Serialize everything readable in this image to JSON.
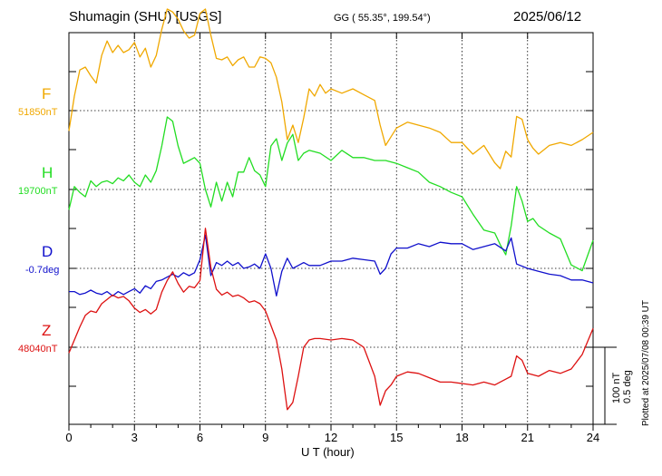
{
  "header": {
    "title": "Shumagin (SHU)  [USGS]",
    "coords": "GG ( 55.35°, 199.54°)",
    "date": "2025/06/12"
  },
  "plotted_note": "Plotted at 2025/07/08 00:39 UT",
  "scale": {
    "nt": "100 nT",
    "deg": "0.5 deg"
  },
  "chart_data": {
    "type": "line",
    "xlabel": "U T (hour)",
    "xlim": [
      0,
      24
    ],
    "xticks": [
      "0",
      "3",
      "6",
      "9",
      "12",
      "15",
      "18",
      "21",
      "24"
    ],
    "grid": true,
    "series": [
      {
        "name": "F",
        "baseline_label": "51850nT",
        "color": "#f0a800",
        "x": [
          0,
          0.25,
          0.5,
          0.75,
          1,
          1.25,
          1.5,
          1.75,
          2,
          2.25,
          2.5,
          2.75,
          3,
          3.25,
          3.5,
          3.75,
          4,
          4.25,
          4.5,
          4.75,
          5,
          5.25,
          5.5,
          5.75,
          6,
          6.25,
          6.5,
          6.75,
          7,
          7.25,
          7.5,
          7.75,
          8,
          8.25,
          8.5,
          8.75,
          9,
          9.25,
          9.5,
          9.75,
          10,
          10.25,
          10.5,
          10.75,
          11,
          11.25,
          11.5,
          11.75,
          12,
          12.5,
          13,
          13.5,
          14,
          14.25,
          14.5,
          14.75,
          15,
          15.5,
          16,
          16.5,
          17,
          17.5,
          18,
          18.5,
          19,
          19.5,
          19.75,
          20,
          20.25,
          20.5,
          20.75,
          21,
          21.25,
          21.5,
          22,
          22.5,
          23,
          23.5,
          24
        ],
        "y": [
          -14,
          10,
          28,
          30,
          24,
          19,
          38,
          48,
          40,
          45,
          40,
          42,
          47,
          37,
          43,
          30,
          38,
          56,
          70,
          68,
          63,
          55,
          50,
          52,
          67,
          70,
          52,
          36,
          35,
          37,
          31,
          35,
          37,
          30,
          30,
          37,
          36,
          33,
          23,
          6,
          -20,
          -10,
          -22,
          -5,
          15,
          10,
          18,
          12,
          15,
          12,
          15,
          11,
          7,
          -10,
          -24,
          -18,
          -12,
          -8,
          -10,
          -12,
          -15,
          -22,
          -22,
          -30,
          -24,
          -36,
          -40,
          -28,
          -32,
          -4,
          -6,
          -20,
          -26,
          -30,
          -24,
          -22,
          -24,
          -20,
          -15
        ],
        "scale": 1.0,
        "offset": 0
      },
      {
        "name": "H",
        "baseline_label": "19700nT",
        "color": "#22dd22",
        "x": [
          0,
          0.25,
          0.5,
          0.75,
          1,
          1.25,
          1.5,
          1.75,
          2,
          2.25,
          2.5,
          2.75,
          3,
          3.25,
          3.5,
          3.75,
          4,
          4.25,
          4.5,
          4.75,
          5,
          5.25,
          5.5,
          5.75,
          6,
          6.25,
          6.5,
          6.75,
          7,
          7.25,
          7.5,
          7.75,
          8,
          8.25,
          8.5,
          8.75,
          9,
          9.25,
          9.5,
          9.75,
          10,
          10.25,
          10.5,
          10.75,
          11,
          11.5,
          12,
          12.5,
          13,
          13.5,
          14,
          14.5,
          15,
          15.5,
          16,
          16.5,
          17,
          17.5,
          18,
          18.5,
          19,
          19.5,
          19.75,
          20,
          20.25,
          20.5,
          20.75,
          21,
          21.25,
          21.5,
          22,
          22.5,
          23,
          23.5,
          24
        ],
        "y": [
          -14,
          2,
          -2,
          -5,
          6,
          2,
          5,
          6,
          4,
          8,
          6,
          10,
          5,
          2,
          10,
          5,
          13,
          30,
          50,
          47,
          30,
          18,
          20,
          22,
          18,
          0,
          -12,
          5,
          -8,
          5,
          -5,
          12,
          12,
          22,
          13,
          10,
          2,
          30,
          35,
          20,
          32,
          38,
          20,
          25,
          27,
          25,
          20,
          27,
          22,
          22,
          20,
          20,
          18,
          15,
          12,
          5,
          2,
          -2,
          -5,
          -17,
          -28,
          -30,
          -38,
          -45,
          -25,
          2,
          -8,
          -22,
          -20,
          -25,
          -30,
          -34,
          -52,
          -56,
          -35
        ],
        "scale": 1.0,
        "offset": 0
      },
      {
        "name": "D",
        "baseline_label": "-0.7deg",
        "color": "#1010cc",
        "x": [
          0,
          0.25,
          0.5,
          0.75,
          1,
          1.25,
          1.5,
          1.75,
          2,
          2.25,
          2.5,
          2.75,
          3,
          3.25,
          3.5,
          3.75,
          4,
          4.25,
          4.5,
          4.75,
          5,
          5.25,
          5.5,
          5.75,
          6,
          6.25,
          6.5,
          6.75,
          7,
          7.25,
          7.5,
          7.75,
          8,
          8.25,
          8.5,
          8.75,
          9,
          9.25,
          9.5,
          9.75,
          10,
          10.25,
          10.5,
          10.75,
          11,
          11.5,
          12,
          12.5,
          13,
          13.5,
          14,
          14.25,
          14.5,
          14.75,
          15,
          15.5,
          16,
          16.5,
          17,
          17.5,
          18,
          18.5,
          19,
          19.5,
          20,
          20.25,
          20.5,
          21,
          21.5,
          22,
          22.5,
          23,
          23.5,
          24
        ],
        "y": [
          -0.16,
          -0.16,
          -0.18,
          -0.17,
          -0.15,
          -0.17,
          -0.18,
          -0.16,
          -0.19,
          -0.16,
          -0.18,
          -0.16,
          -0.14,
          -0.17,
          -0.12,
          -0.14,
          -0.09,
          -0.08,
          -0.06,
          -0.04,
          -0.06,
          -0.03,
          -0.05,
          -0.03,
          0.06,
          0.23,
          -0.05,
          0.04,
          0.02,
          0.05,
          0.02,
          0.04,
          0.0,
          0.01,
          0.03,
          0.0,
          0.1,
          0.0,
          -0.19,
          -0.02,
          0.07,
          0.0,
          0.02,
          0.04,
          0.02,
          0.02,
          0.05,
          0.05,
          0.07,
          0.06,
          0.05,
          -0.04,
          0.0,
          0.1,
          0.14,
          0.14,
          0.17,
          0.15,
          0.18,
          0.17,
          0.17,
          0.13,
          0.15,
          0.17,
          0.12,
          0.21,
          0.03,
          0.0,
          -0.02,
          -0.04,
          -0.05,
          -0.08,
          -0.08,
          -0.1
        ],
        "scale": 1.0,
        "offset": 0
      },
      {
        "name": "Z",
        "baseline_label": "48040nT",
        "color": "#dd1111",
        "x": [
          0,
          0.25,
          0.5,
          0.75,
          1,
          1.25,
          1.5,
          1.75,
          2,
          2.25,
          2.5,
          2.75,
          3,
          3.25,
          3.5,
          3.75,
          4,
          4.25,
          4.5,
          4.75,
          5,
          5.25,
          5.5,
          5.75,
          6,
          6.25,
          6.5,
          6.75,
          7,
          7.25,
          7.5,
          7.75,
          8,
          8.25,
          8.5,
          8.75,
          9,
          9.25,
          9.5,
          9.75,
          10,
          10.25,
          10.5,
          10.75,
          11,
          11.25,
          11.5,
          12,
          12.5,
          13,
          13.5,
          14,
          14.25,
          14.5,
          14.75,
          15,
          15.5,
          16,
          16.5,
          17,
          17.5,
          18,
          18.5,
          19,
          19.5,
          20,
          20.25,
          20.5,
          20.75,
          21,
          21.5,
          22,
          22.5,
          23,
          23.5,
          24
        ],
        "y": [
          -4,
          5,
          14,
          22,
          25,
          24,
          30,
          33,
          36,
          34,
          35,
          32,
          27,
          24,
          26,
          23,
          26,
          38,
          46,
          52,
          44,
          38,
          42,
          41,
          46,
          82,
          55,
          40,
          36,
          38,
          35,
          36,
          34,
          31,
          32,
          30,
          25,
          15,
          5,
          -15,
          -43,
          -38,
          -20,
          0,
          5,
          6,
          6,
          5,
          6,
          5,
          0,
          -20,
          -40,
          -30,
          -26,
          -20,
          -17,
          -18,
          -21,
          -24,
          -24,
          -25,
          -26,
          -24,
          -26,
          -22,
          -20,
          -6,
          -9,
          -18,
          -20,
          -16,
          -18,
          -15,
          -5,
          13
        ],
        "scale": 1.0,
        "offset": 0
      }
    ]
  }
}
